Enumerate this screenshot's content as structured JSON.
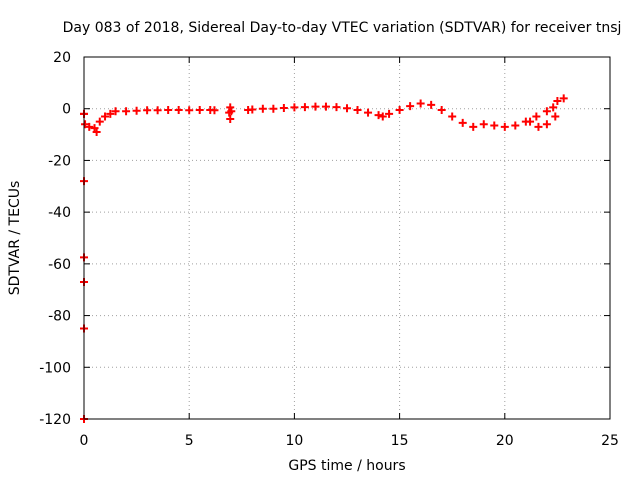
{
  "chart_data": {
    "type": "scatter",
    "title": "Day 083 of 2018, Sidereal Day-to-day VTEC variation (SDTVAR) for receiver tnsj",
    "xlabel": "GPS time / hours",
    "ylabel": "SDTVAR / TECUs",
    "xlim": [
      0,
      25
    ],
    "ylim": [
      -120,
      20
    ],
    "xticks": [
      0,
      5,
      10,
      15,
      20,
      25
    ],
    "yticks": [
      20,
      0,
      -20,
      -40,
      -60,
      -80,
      -100,
      -120
    ],
    "grid": true,
    "legend": "none",
    "marker": "cross",
    "color": "#ff0000",
    "series": [
      {
        "x": [
          0.0,
          0.05,
          0.25,
          0.5,
          0.75,
          1.0,
          1.25,
          1.5,
          2.0,
          2.5,
          3.0,
          3.5,
          4.0,
          4.5,
          5.0,
          5.5,
          6.0,
          6.2,
          6.9,
          7.0,
          7.8,
          8.0,
          8.5,
          9.0,
          9.5,
          10.0,
          10.5,
          11.0,
          11.5,
          12.0,
          12.5,
          13.0,
          13.5,
          14.0,
          14.2,
          14.5,
          15.0,
          15.5,
          16.0,
          16.5,
          17.0,
          17.5,
          18.0,
          18.5,
          19.0,
          19.5,
          20.0,
          20.5,
          21.0,
          21.5,
          22.0,
          22.3,
          22.5,
          22.8,
          21.2,
          21.6,
          22.0,
          22.4
        ],
        "y": [
          -2.0,
          -6.0,
          -7.0,
          -7.5,
          -5.0,
          -3.0,
          -2.0,
          -1.0,
          -1.0,
          -0.8,
          -0.6,
          -0.6,
          -0.5,
          -0.5,
          -0.6,
          -0.5,
          -0.5,
          -0.6,
          -1.5,
          -1.0,
          -0.5,
          -0.3,
          0.0,
          0.0,
          0.3,
          0.5,
          0.6,
          0.8,
          0.8,
          0.6,
          0.2,
          -0.5,
          -1.5,
          -2.5,
          -3.0,
          -2.0,
          -0.5,
          1.0,
          2.0,
          1.5,
          -0.5,
          -3.0,
          -5.5,
          -7.0,
          -6.0,
          -6.5,
          -7.0,
          -6.5,
          -5.0,
          -3.0,
          -1.0,
          0.5,
          3.0,
          4.0,
          -5.0,
          -7.0,
          -6.0,
          -3.0
        ]
      },
      {
        "x": [
          0.0,
          0.0,
          0.0,
          0.0,
          0.0,
          0.0,
          6.95,
          6.95,
          0.6
        ],
        "y": [
          -2.0,
          -28.0,
          -57.5,
          -67.0,
          -85.0,
          -120.0,
          -4.0,
          0.5,
          -9.0
        ]
      }
    ]
  }
}
